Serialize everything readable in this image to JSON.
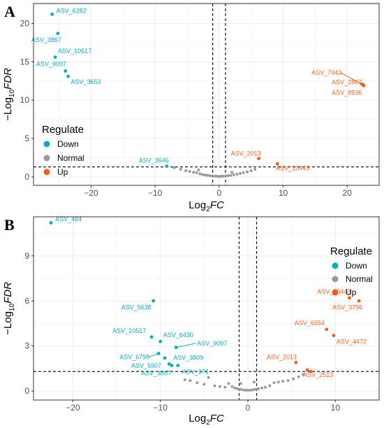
{
  "colors": {
    "Down": "#00adbc",
    "Normal": "#999999",
    "Up": "#f45d13",
    "grid": "#ebebeb",
    "border": "#333333"
  },
  "chart_data": [
    {
      "panel": "A",
      "type": "scatter",
      "xlabel": {
        "base": "Log",
        "sub": "2",
        "ital": "FC"
      },
      "ylabel": {
        "prefix": "−Log",
        "sub": "10",
        "ital": "FDR"
      },
      "xlim": [
        -29,
        25
      ],
      "ylim": [
        -1.1,
        22.6
      ],
      "xticks": [
        -20,
        -10,
        0,
        10,
        20
      ],
      "yticks": [
        0,
        5,
        10,
        15,
        20
      ],
      "vlines": [
        -1,
        1
      ],
      "hline": 1.3,
      "grid": true,
      "legend": {
        "title": "Regulate",
        "position": "left",
        "entries": [
          "Down",
          "Normal",
          "Up"
        ]
      },
      "series": [
        {
          "name": "Down",
          "points": [
            {
              "x": -26.1,
              "y": 21.2,
              "label": "ASV_6282"
            },
            {
              "x": -25.2,
              "y": 18.7,
              "label": "ASV_3867"
            },
            {
              "x": -25.6,
              "y": 15.6,
              "label": "ASV_10517"
            },
            {
              "x": -24.0,
              "y": 13.8,
              "label": "ASV_9097"
            },
            {
              "x": -23.6,
              "y": 13.1,
              "label": "ASV_3653"
            },
            {
              "x": -8.2,
              "y": 1.4,
              "label": "ASV_3646"
            }
          ]
        },
        {
          "name": "Up",
          "points": [
            {
              "x": 22.3,
              "y": 12.1,
              "label": "ASV_7943"
            },
            {
              "x": 22.6,
              "y": 11.9,
              "label": "ASV_2867"
            },
            {
              "x": 22.5,
              "y": 12.0,
              "label": "ASV_8936"
            },
            {
              "x": 6.2,
              "y": 2.4,
              "label": "ASV_2013"
            },
            {
              "x": 9.1,
              "y": 1.7,
              "label": "ASV_10443"
            }
          ]
        },
        {
          "name": "Normal",
          "points": [
            {
              "x": -7.0,
              "y": 1.2
            },
            {
              "x": -6.0,
              "y": 1.0
            },
            {
              "x": -5.2,
              "y": 0.8
            },
            {
              "x": -4.6,
              "y": 0.7
            },
            {
              "x": -4.0,
              "y": 0.6
            },
            {
              "x": -3.5,
              "y": 0.55
            },
            {
              "x": -3.0,
              "y": 0.4
            },
            {
              "x": -2.6,
              "y": 0.3
            },
            {
              "x": -2.2,
              "y": 0.25
            },
            {
              "x": -1.8,
              "y": 0.2
            },
            {
              "x": -1.4,
              "y": 0.15
            },
            {
              "x": -1.0,
              "y": 0.12
            },
            {
              "x": -0.6,
              "y": 0.1
            },
            {
              "x": -0.3,
              "y": 0.08
            },
            {
              "x": 0.0,
              "y": 0.05
            },
            {
              "x": 0.3,
              "y": 0.08
            },
            {
              "x": 0.6,
              "y": 0.1
            },
            {
              "x": 1.0,
              "y": 0.12
            },
            {
              "x": 1.4,
              "y": 0.15
            },
            {
              "x": 1.8,
              "y": 0.2
            },
            {
              "x": 2.3,
              "y": 0.28
            },
            {
              "x": 2.8,
              "y": 0.35
            },
            {
              "x": 3.3,
              "y": 0.45
            },
            {
              "x": 3.8,
              "y": 0.55
            },
            {
              "x": 4.4,
              "y": 0.65
            },
            {
              "x": 5.0,
              "y": 0.8
            },
            {
              "x": 5.6,
              "y": 1.0
            },
            {
              "x": -3.2,
              "y": 0.9
            },
            {
              "x": 2.0,
              "y": 0.6
            }
          ]
        }
      ]
    },
    {
      "panel": "B",
      "type": "scatter",
      "xlabel": {
        "base": "Log",
        "sub": "2",
        "ital": "FC"
      },
      "ylabel": {
        "prefix": "−Log",
        "sub": "10",
        "ital": "FDR"
      },
      "xlim": [
        -24.5,
        15
      ],
      "ylim": [
        -0.6,
        11.6
      ],
      "xticks": [
        -20,
        -10,
        0,
        10
      ],
      "yticks": [
        0,
        3,
        6,
        9
      ],
      "vlines": [
        -1,
        1
      ],
      "hline": 1.3,
      "grid": true,
      "legend": {
        "title": "Regulate",
        "position": "top-right",
        "entries": [
          "Down",
          "Normal",
          "Up"
        ]
      },
      "series": [
        {
          "name": "Down",
          "points": [
            {
              "x": -22.5,
              "y": 11.2,
              "label": "ASV_464"
            },
            {
              "x": -10.8,
              "y": 6.0,
              "label": "ASV_5638"
            },
            {
              "x": -11.0,
              "y": 3.6,
              "label": "ASV_10517"
            },
            {
              "x": -10.0,
              "y": 3.3,
              "label": "ASV_6430"
            },
            {
              "x": -10.2,
              "y": 2.5,
              "label": "ASV_6799"
            },
            {
              "x": -9.5,
              "y": 2.2,
              "label": "ASV_5907"
            },
            {
              "x": -9.0,
              "y": 1.8,
              "label": "ASV_3809"
            },
            {
              "x": -8.7,
              "y": 1.7,
              "label": "ASV_3867"
            },
            {
              "x": -8.2,
              "y": 2.9,
              "label": "ASV_9097"
            },
            {
              "x": -8.0,
              "y": 1.7,
              "label": "ASV_171"
            }
          ]
        },
        {
          "name": "Up",
          "points": [
            {
              "x": 11.6,
              "y": 6.2,
              "label": "ASV_10443"
            },
            {
              "x": 12.7,
              "y": 6.0,
              "label": "ASV_3796"
            },
            {
              "x": 9.0,
              "y": 4.1,
              "label": "ASV_6554"
            },
            {
              "x": 9.8,
              "y": 3.7,
              "label": "ASV_4472"
            },
            {
              "x": 5.5,
              "y": 1.9,
              "label": "ASV_2013"
            },
            {
              "x": 6.8,
              "y": 1.4,
              "label": "ASV_2513"
            },
            {
              "x": 7.2,
              "y": 1.3
            }
          ]
        },
        {
          "name": "Normal",
          "points": [
            {
              "x": -7.2,
              "y": 0.75
            },
            {
              "x": -6.6,
              "y": 0.7
            },
            {
              "x": -5.8,
              "y": 0.55
            },
            {
              "x": -5.0,
              "y": 0.45
            },
            {
              "x": -4.5,
              "y": 0.9
            },
            {
              "x": -3.8,
              "y": 0.35
            },
            {
              "x": -3.2,
              "y": 0.3
            },
            {
              "x": -2.6,
              "y": 0.25
            },
            {
              "x": -2.2,
              "y": 0.5
            },
            {
              "x": -1.8,
              "y": 0.3
            },
            {
              "x": -1.5,
              "y": 0.2
            },
            {
              "x": -1.2,
              "y": 0.15
            },
            {
              "x": -0.9,
              "y": 0.12
            },
            {
              "x": -0.6,
              "y": 0.08
            },
            {
              "x": -0.3,
              "y": 0.06
            },
            {
              "x": 0.0,
              "y": 0.05
            },
            {
              "x": 0.3,
              "y": 0.06
            },
            {
              "x": 0.6,
              "y": 0.08
            },
            {
              "x": 0.9,
              "y": 0.12
            },
            {
              "x": 1.2,
              "y": 0.15
            },
            {
              "x": 1.6,
              "y": 0.2
            },
            {
              "x": 2.0,
              "y": 0.25
            },
            {
              "x": 2.5,
              "y": 0.35
            },
            {
              "x": 3.0,
              "y": 0.55
            },
            {
              "x": 3.5,
              "y": 0.6
            },
            {
              "x": 4.0,
              "y": 0.65
            },
            {
              "x": 4.6,
              "y": 0.7
            },
            {
              "x": 5.2,
              "y": 0.8
            },
            {
              "x": 5.8,
              "y": 0.95
            },
            {
              "x": 6.3,
              "y": 1.1
            },
            {
              "x": -0.8,
              "y": 0.5
            },
            {
              "x": 0.7,
              "y": 0.6
            }
          ]
        }
      ]
    }
  ]
}
